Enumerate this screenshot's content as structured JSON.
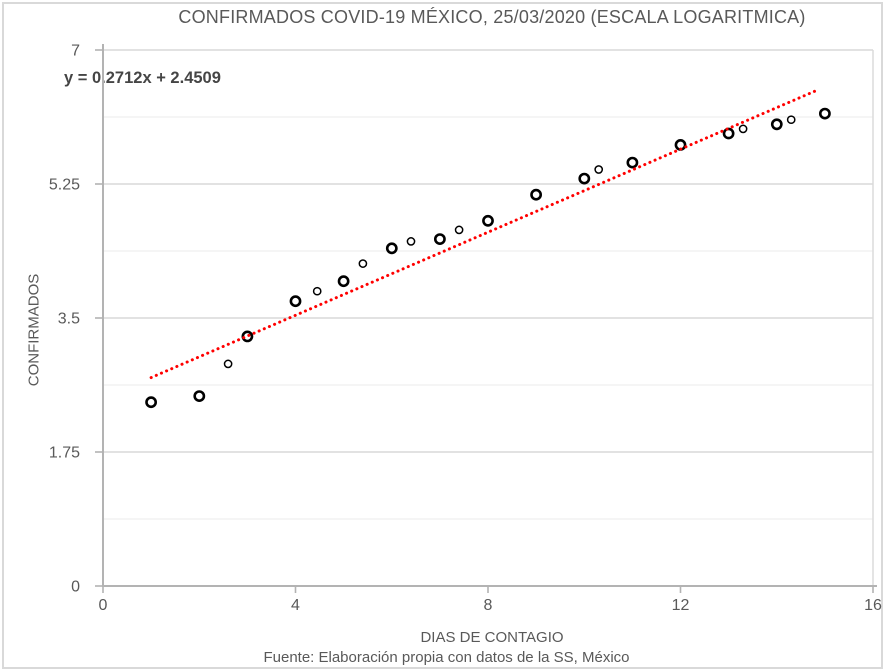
{
  "page": {
    "background": "#ffffff",
    "frame_border_color": "#d9d9d9"
  },
  "chart_data": {
    "type": "scatter",
    "title": "CONFIRMADOS COVID-19 MÉXICO, 25/03/2020 (ESCALA LOGARITMICA)",
    "xlabel": "DIAS DE CONTAGIO",
    "ylabel": "CONFIRMADOS",
    "source_note": "Fuente: Elaboración propia con datos de la SS, México",
    "trendline_equation": "y = 0.2712x + 2.4509",
    "xlim": [
      0,
      16
    ],
    "ylim": [
      0,
      7
    ],
    "x_ticks": [
      0,
      4,
      8,
      12,
      16
    ],
    "y_ticks": [
      0,
      1.75,
      3.5,
      5.25,
      7
    ],
    "y_minor_gridlines": [
      0.875,
      2.625,
      4.375,
      6.125
    ],
    "grid": "horizontal-only",
    "legend": "none",
    "series": [
      {
        "name": "circulos-grandes-dias-enteros",
        "marker": "open-circle-bold",
        "points": [
          [
            1,
            2.4
          ],
          [
            2,
            2.48
          ],
          [
            3,
            3.26
          ],
          [
            4,
            3.72
          ],
          [
            5,
            3.98
          ],
          [
            6,
            4.41
          ],
          [
            7,
            4.53
          ],
          [
            8,
            4.77
          ],
          [
            9,
            5.11
          ],
          [
            10,
            5.32
          ],
          [
            11,
            5.53
          ],
          [
            12,
            5.76
          ],
          [
            13,
            5.91
          ],
          [
            14,
            6.03
          ],
          [
            15,
            6.17
          ]
        ]
      },
      {
        "name": "circulos-pequenos-intermedios",
        "marker": "open-circle-small",
        "points": [
          [
            2.6,
            2.9
          ],
          [
            4.45,
            3.85
          ],
          [
            5.4,
            4.21
          ],
          [
            6.4,
            4.5
          ],
          [
            7.4,
            4.65
          ],
          [
            10.3,
            5.44
          ],
          [
            13.3,
            5.97
          ],
          [
            14.3,
            6.09
          ]
        ]
      }
    ],
    "trendline": {
      "type": "linear",
      "slope": 0.2712,
      "intercept": 2.4509,
      "x_start": 1,
      "x_end": 14.82,
      "style": "dotted"
    },
    "colors": {
      "trendline": "#ff0000",
      "marker_stroke": "#000000",
      "marker_fill": "#ffffff",
      "axis": "#b3b3b3",
      "gridline_major": "#d9d9d9",
      "gridline_minor": "#f2f2f2",
      "text": "#595959",
      "equation_text": "#454545"
    }
  }
}
